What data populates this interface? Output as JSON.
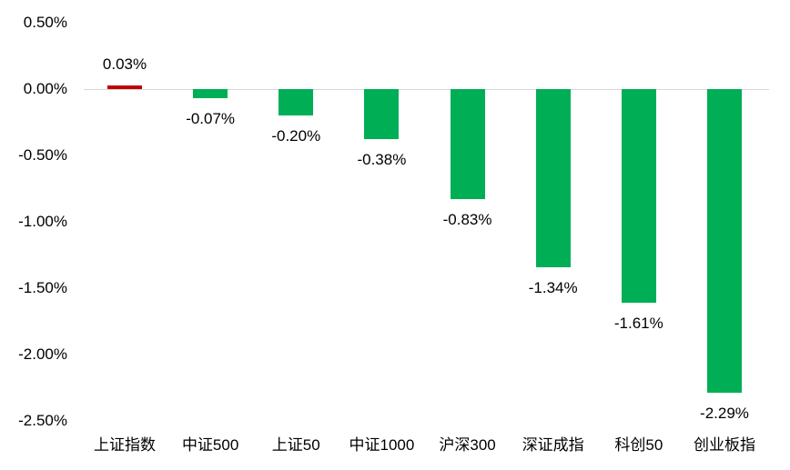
{
  "chart_data": {
    "type": "bar",
    "title": "",
    "xlabel": "",
    "ylabel": "",
    "categories": [
      "上证指数",
      "中证500",
      "上证50",
      "中证1000",
      "沪深300",
      "深证成指",
      "科创50",
      "创业板指"
    ],
    "values": [
      0.03,
      -0.07,
      -0.2,
      -0.38,
      -0.83,
      -1.34,
      -1.61,
      -2.29
    ],
    "value_labels": [
      "0.03%",
      "-0.07%",
      "-0.20%",
      "-0.38%",
      "-0.83%",
      "-1.34%",
      "-1.61%",
      "-2.29%"
    ],
    "ytick_labels": [
      "0.50%",
      "0.00%",
      "-0.50%",
      "-1.00%",
      "-1.50%",
      "-2.00%",
      "-2.50%"
    ],
    "ytick_values": [
      0.5,
      0.0,
      -0.5,
      -1.0,
      -1.5,
      -2.0,
      -2.5
    ],
    "ylim": [
      -2.5,
      0.5
    ],
    "grid": "zero-line-only",
    "legend_position": "none",
    "colors": {
      "positive_bar": "#c00000",
      "negative_bar": "#00ae56",
      "axis_line": "#d6d6d6",
      "text": "#000000",
      "background": "#ffffff"
    }
  }
}
